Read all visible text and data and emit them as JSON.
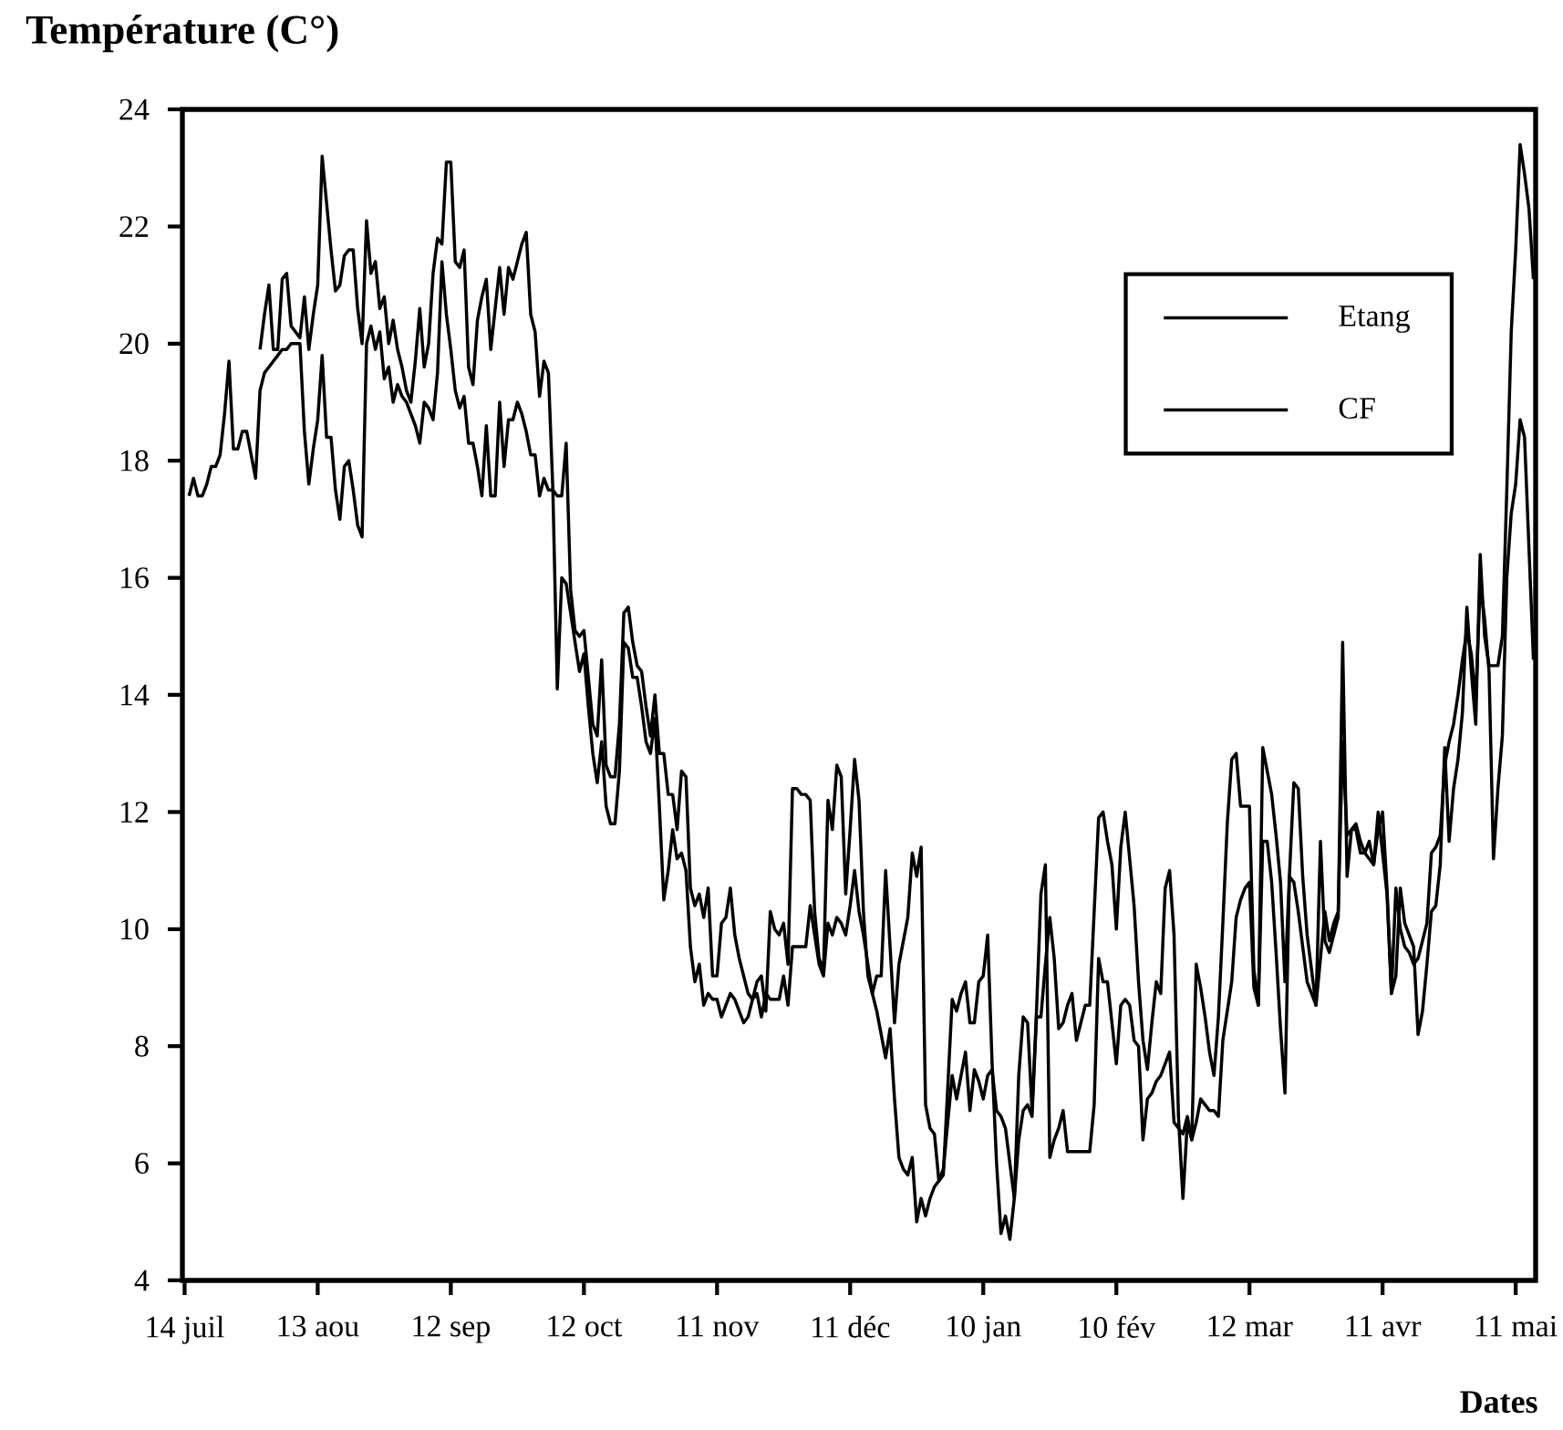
{
  "chart_data": {
    "type": "line",
    "xlabel": "Dates",
    "ylabel": "Température (C°)",
    "categories": [
      "14 juil",
      null,
      null,
      null,
      null,
      null,
      null,
      null,
      null,
      null,
      null,
      null,
      null,
      null,
      null,
      null,
      null,
      null,
      null,
      null,
      null,
      null,
      null,
      null,
      null,
      null,
      null,
      null,
      null,
      null,
      "13 aou",
      null,
      null,
      null,
      null,
      null,
      null,
      null,
      null,
      null,
      null,
      null,
      null,
      null,
      null,
      null,
      null,
      null,
      null,
      null,
      null,
      null,
      null,
      null,
      null,
      null,
      null,
      null,
      null,
      null,
      "12 sep",
      null,
      null,
      null,
      null,
      null,
      null,
      null,
      null,
      null,
      null,
      null,
      null,
      null,
      null,
      null,
      null,
      null,
      null,
      null,
      null,
      null,
      null,
      null,
      null,
      null,
      null,
      null,
      null,
      null,
      "12 oct",
      null,
      null,
      null,
      null,
      null,
      null,
      null,
      null,
      null,
      null,
      null,
      null,
      null,
      null,
      null,
      null,
      null,
      null,
      null,
      null,
      null,
      null,
      null,
      null,
      null,
      null,
      null,
      null,
      null,
      "11 nov",
      null,
      null,
      null,
      null,
      null,
      null,
      null,
      null,
      null,
      null,
      null,
      null,
      null,
      null,
      null,
      null,
      null,
      null,
      null,
      null,
      null,
      null,
      null,
      null,
      null,
      null,
      null,
      null,
      null,
      "11 déc",
      null,
      null,
      null,
      null,
      null,
      null,
      null,
      null,
      null,
      null,
      null,
      null,
      null,
      null,
      null,
      null,
      null,
      null,
      null,
      null,
      null,
      null,
      null,
      null,
      null,
      null,
      null,
      null,
      null,
      "10 jan",
      null,
      null,
      null,
      null,
      null,
      null,
      null,
      null,
      null,
      null,
      null,
      null,
      null,
      null,
      null,
      null,
      null,
      null,
      null,
      null,
      null,
      null,
      null,
      null,
      null,
      null,
      null,
      null,
      null,
      "10 fév",
      null,
      null,
      null,
      null,
      null,
      null,
      null,
      null,
      null,
      null,
      null,
      null,
      null,
      null,
      null,
      null,
      null,
      null,
      null,
      null,
      null,
      null,
      null,
      null,
      null,
      null,
      null,
      null,
      null,
      "12 mar",
      null,
      null,
      null,
      null,
      null,
      null,
      null,
      null,
      null,
      null,
      null,
      null,
      null,
      null,
      null,
      null,
      null,
      null,
      null,
      null,
      null,
      null,
      null,
      null,
      null,
      null,
      null,
      null,
      null,
      "11 avr",
      null,
      null,
      null,
      null,
      null,
      null,
      null,
      null,
      null,
      null,
      null,
      null,
      null,
      null,
      null,
      null,
      null,
      null,
      null,
      null,
      null,
      null,
      null,
      null,
      null,
      null,
      null,
      null,
      null,
      "11 mai",
      null,
      null,
      null,
      null
    ],
    "ylim": [
      4,
      24
    ],
    "yticks": [
      4,
      6,
      8,
      10,
      12,
      14,
      16,
      18,
      20,
      22,
      24
    ],
    "legend": "top right",
    "marker": "none",
    "line_style": "solid",
    "series": [
      {
        "name": "Etang",
        "color": "#000000",
        "values": [
          null,
          null,
          null,
          null,
          null,
          null,
          null,
          null,
          null,
          null,
          null,
          null,
          null,
          null,
          null,
          null,
          null,
          19.9,
          20.5,
          21.0,
          19.9,
          19.9,
          21.1,
          21.2,
          20.3,
          20.2,
          20.1,
          20.8,
          19.9,
          20.5,
          21.0,
          23.2,
          22.4,
          21.6,
          20.9,
          21.0,
          21.5,
          21.6,
          21.6,
          20.6,
          20.0,
          22.1,
          21.2,
          21.4,
          20.6,
          20.8,
          20.0,
          20.4,
          19.9,
          19.6,
          19.2,
          19.0,
          19.7,
          20.6,
          19.6,
          20.0,
          21.2,
          21.8,
          21.7,
          23.1,
          23.1,
          21.4,
          21.3,
          21.6,
          19.6,
          19.3,
          20.4,
          20.8,
          21.1,
          19.9,
          20.6,
          21.3,
          20.5,
          21.3,
          21.1,
          21.4,
          21.7,
          21.9,
          20.5,
          20.2,
          19.1,
          19.7,
          19.5,
          17.5,
          17.4,
          17.4,
          18.3,
          15.8,
          15.1,
          15.0,
          15.1,
          14.3,
          13.5,
          13.3,
          14.6,
          12.8,
          12.6,
          12.6,
          13.5,
          15.4,
          15.5,
          14.9,
          14.5,
          14.4,
          13.8,
          13.3,
          14.0,
          13.0,
          13.0,
          12.3,
          12.3,
          11.7,
          12.7,
          12.6,
          10.7,
          10.4,
          10.6,
          10.2,
          10.7,
          9.2,
          9.2,
          10.1,
          10.2,
          10.7,
          9.9,
          9.5,
          9.2,
          8.9,
          8.8,
          9.1,
          9.2,
          8.6,
          10.3,
          10.0,
          9.9,
          10.1,
          9.4,
          12.4,
          12.4,
          12.3,
          12.3,
          12.2,
          10.3,
          9.5,
          9.3,
          12.2,
          11.7,
          12.8,
          12.6,
          10.6,
          11.7,
          12.9,
          12.2,
          10.3,
          9.2,
          8.9,
          9.2,
          9.2,
          11.0,
          9.7,
          8.4,
          9.4,
          9.8,
          10.2,
          11.3,
          10.9,
          11.4,
          7.0,
          6.6,
          6.5,
          5.7,
          5.8,
          7.3,
          8.8,
          8.6,
          8.9,
          9.1,
          8.4,
          8.4,
          9.1,
          9.2,
          9.9,
          7.7,
          6.0,
          4.8,
          5.1,
          4.7,
          5.4,
          7.5,
          8.5,
          8.4,
          6.9,
          8.6,
          10.6,
          11.1,
          6.1,
          6.4,
          6.6,
          6.9,
          6.2,
          6.2,
          6.2,
          6.2,
          6.2,
          6.2,
          7.0,
          9.5,
          9.1,
          9.1,
          8.4,
          7.7,
          8.7,
          8.8,
          8.7,
          8.1,
          8.0,
          6.4,
          7.1,
          7.2,
          7.4,
          7.5,
          7.7,
          7.9,
          6.7,
          6.6,
          6.5,
          6.8,
          6.4,
          6.7,
          7.1,
          7.0,
          6.9,
          6.9,
          6.8,
          8.1,
          8.6,
          9.1,
          10.2,
          10.5,
          10.7,
          10.8,
          9.0,
          8.7,
          11.5,
          11.5,
          10.8,
          9.6,
          8.3,
          7.2,
          10.9,
          10.8,
          10.3,
          9.7,
          9.1,
          8.9,
          8.7,
          11.5,
          9.8,
          9.6,
          9.9,
          10.2,
          14.9,
          10.9,
          11.7,
          11.8,
          11.5,
          11.3,
          11.5,
          11.1,
          11.7,
          12.0,
          10.7,
          8.9,
          9.2,
          10.7,
          10.1,
          9.9,
          9.7,
          8.2,
          8.6,
          9.4,
          10.3,
          10.4,
          11.1,
          13.1,
          11.5,
          12.4,
          12.9,
          13.7,
          15.5,
          14.4,
          13.5,
          16.4,
          15.0,
          14.5,
          14.5,
          14.5,
          15.0,
          17.5,
          20.2,
          21.6,
          23.4,
          22.9,
          22.3,
          21.1
        ]
      },
      {
        "name": "CF",
        "color": "#000000",
        "values": [
          null,
          17.4,
          17.7,
          17.4,
          17.4,
          17.6,
          17.9,
          17.9,
          18.1,
          18.8,
          19.7,
          18.2,
          18.2,
          18.5,
          18.5,
          18.1,
          17.7,
          19.2,
          19.5,
          19.6,
          19.7,
          19.8,
          19.9,
          19.9,
          20.0,
          20.0,
          20.0,
          18.5,
          17.6,
          18.2,
          18.7,
          19.8,
          18.4,
          18.4,
          17.5,
          17.0,
          17.9,
          18.0,
          17.5,
          16.9,
          16.7,
          20.0,
          20.3,
          19.9,
          20.2,
          19.4,
          19.6,
          19.0,
          19.3,
          19.1,
          19.0,
          18.8,
          18.6,
          18.3,
          19.0,
          18.9,
          18.7,
          19.5,
          21.4,
          20.5,
          19.9,
          19.2,
          18.9,
          19.1,
          18.3,
          18.3,
          17.9,
          17.4,
          18.6,
          17.4,
          17.4,
          19.0,
          17.9,
          18.7,
          18.7,
          19.0,
          18.8,
          18.5,
          18.1,
          18.1,
          17.4,
          17.7,
          17.5,
          17.5,
          14.1,
          16.0,
          15.9,
          15.4,
          14.9,
          14.4,
          14.7,
          13.8,
          13.0,
          12.5,
          13.2,
          12.1,
          11.8,
          11.8,
          12.7,
          14.9,
          14.8,
          14.3,
          14.3,
          13.8,
          13.2,
          13.0,
          13.6,
          12.1,
          10.5,
          11.0,
          11.7,
          11.2,
          11.3,
          11.0,
          9.7,
          9.1,
          9.4,
          8.7,
          8.9,
          8.8,
          8.8,
          8.5,
          8.7,
          8.9,
          8.8,
          8.6,
          8.4,
          8.5,
          8.8,
          8.9,
          8.5,
          8.9,
          8.8,
          8.8,
          8.8,
          9.2,
          8.7,
          9.7,
          9.7,
          9.7,
          9.7,
          10.4,
          9.9,
          9.4,
          9.2,
          10.1,
          9.9,
          10.2,
          10.1,
          9.9,
          10.4,
          11.0,
          10.3,
          9.9,
          9.4,
          8.9,
          8.6,
          8.2,
          7.8,
          8.3,
          7.1,
          6.1,
          5.9,
          5.8,
          6.1,
          5.0,
          5.4,
          5.1,
          5.4,
          5.6,
          5.7,
          5.9,
          6.7,
          7.5,
          7.1,
          7.5,
          7.9,
          6.9,
          7.6,
          7.4,
          7.1,
          7.5,
          7.6,
          6.9,
          6.8,
          6.6,
          6.0,
          5.4,
          6.4,
          6.9,
          7.0,
          6.8,
          8.5,
          8.5,
          9.4,
          10.2,
          9.5,
          8.3,
          8.4,
          8.7,
          8.9,
          8.1,
          8.4,
          8.7,
          8.7,
          10.3,
          11.9,
          12.0,
          11.5,
          11.1,
          10.0,
          11.4,
          12.0,
          11.2,
          10.4,
          9.1,
          8.1,
          7.6,
          8.4,
          9.1,
          8.9,
          10.7,
          11.0,
          9.9,
          6.8,
          5.4,
          6.7,
          6.4,
          9.4,
          9.0,
          8.5,
          7.9,
          7.5,
          8.5,
          10.1,
          11.8,
          12.9,
          13.0,
          12.1,
          12.1,
          12.1,
          9.3,
          8.7,
          13.1,
          12.7,
          12.3,
          11.6,
          10.8,
          9.1,
          10.9,
          12.5,
          12.4,
          10.9,
          9.9,
          9.3,
          8.7,
          9.5,
          10.3,
          9.8,
          10.1,
          10.3,
          13.2,
          11.6,
          11.7,
          11.7,
          11.3,
          11.3,
          11.2,
          11.1,
          12.0,
          11.3,
          10.6,
          8.9,
          10.7,
          10.0,
          9.7,
          9.6,
          9.4,
          9.5,
          9.8,
          10.1,
          11.3,
          11.4,
          11.6,
          12.8,
          13.2,
          13.5,
          14.0,
          14.6,
          15.1,
          14.7,
          13.9,
          15.9,
          15.3,
          14.4,
          11.2,
          12.4,
          13.3,
          16.0,
          17.1,
          17.6,
          18.7,
          18.4,
          16.5,
          14.6
        ]
      }
    ]
  }
}
